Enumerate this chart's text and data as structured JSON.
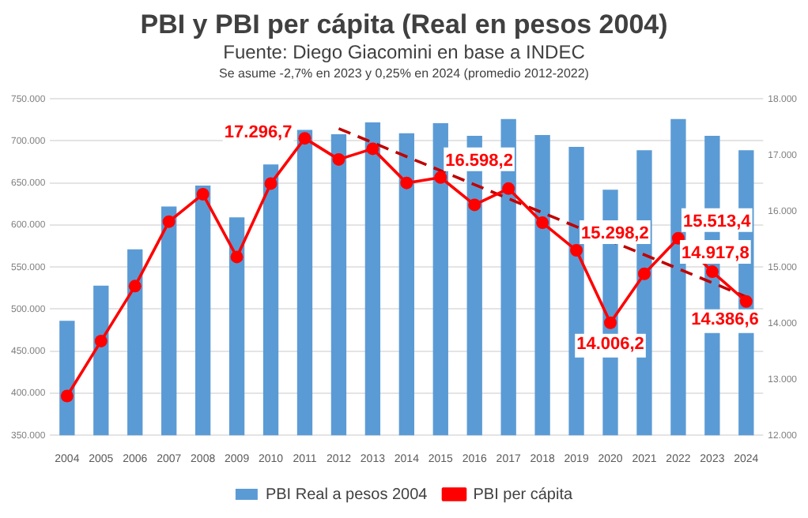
{
  "chart_data": {
    "type": "bar",
    "title": "PBI y PBI per cápita (Real en pesos 2004)",
    "subtitle": "Fuente: Diego Giacomini en base a INDEC",
    "annotations": [
      "Se asume -2,7% en 2023 y 0,25% en 2024 (promedio 2012-2022)"
    ],
    "categories": [
      "2004",
      "2005",
      "2006",
      "2007",
      "2008",
      "2009",
      "2010",
      "2011",
      "2012",
      "2013",
      "2014",
      "2015",
      "2016",
      "2017",
      "2018",
      "2019",
      "2020",
      "2021",
      "2022",
      "2023",
      "2024"
    ],
    "series": [
      {
        "name": "PBI Real a pesos 2004",
        "color": "#5b9bd5",
        "values": [
          486000,
          528000,
          571000,
          622000,
          647000,
          609000,
          672000,
          713000,
          708000,
          722000,
          709000,
          721000,
          706000,
          726000,
          707000,
          693000,
          642000,
          689000,
          726000,
          706000,
          689000
        ]
      },
      {
        "name": "PBI per cápita",
        "type": "line",
        "axis": "y2",
        "color": "#ff0000",
        "marker": "circle",
        "values": [
          12700,
          13680,
          14660,
          15810,
          16300,
          15180,
          16490,
          17296.7,
          16920,
          17110,
          16500,
          16598.2,
          16110,
          16400,
          15790,
          15298.2,
          14006.2,
          14880,
          15513.4,
          14917.8,
          14386.6
        ],
        "value_labels": [
          null,
          null,
          null,
          null,
          null,
          null,
          null,
          "17.296,7",
          null,
          null,
          null,
          "16.598,2",
          null,
          null,
          null,
          "15.298,2",
          "14.006,2",
          null,
          "15.513,4",
          "14.917,8",
          "14.386,6"
        ]
      },
      {
        "type": "line",
        "axis": "y2",
        "color": "#c00000",
        "line_style": "dashed",
        "marker": "none",
        "values": [
          null,
          null,
          null,
          null,
          null,
          null,
          null,
          null,
          17470,
          null,
          null,
          null,
          null,
          null,
          null,
          null,
          null,
          null,
          null,
          null,
          14470
        ]
      }
    ],
    "ylim": [
      350000,
      750000
    ],
    "yticks": [
      {
        "value": 350000,
        "label": "350.000"
      },
      {
        "value": 400000,
        "label": "400.000"
      },
      {
        "value": 450000,
        "label": "450.000"
      },
      {
        "value": 500000,
        "label": "500.000"
      },
      {
        "value": 550000,
        "label": "550.000"
      },
      {
        "value": 600000,
        "label": "600.000"
      },
      {
        "value": 650000,
        "label": "650.000"
      },
      {
        "value": 700000,
        "label": "700.000"
      },
      {
        "value": 750000,
        "label": "750.000"
      }
    ],
    "y2lim": [
      12000,
      18000
    ],
    "y2ticks": [
      {
        "value": 12000,
        "label": "12.000"
      },
      {
        "value": 13000,
        "label": "13.000"
      },
      {
        "value": 14000,
        "label": "14.000"
      },
      {
        "value": 15000,
        "label": "15.000"
      },
      {
        "value": 16000,
        "label": "16.000"
      },
      {
        "value": 17000,
        "label": "17.000"
      },
      {
        "value": 18000,
        "label": "18.000"
      }
    ],
    "grid": "y",
    "legend": "bottom"
  }
}
